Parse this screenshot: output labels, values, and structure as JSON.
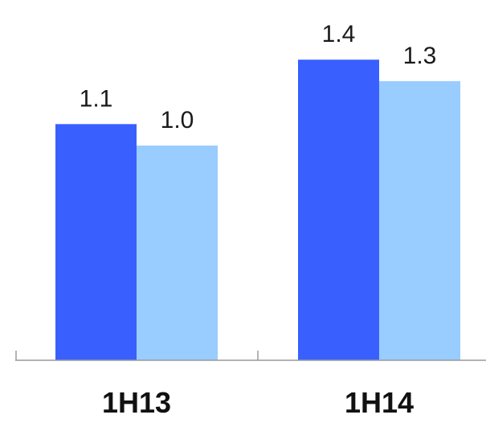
{
  "chart_data": {
    "type": "bar",
    "categories": [
      "1H13",
      "1H14"
    ],
    "series": [
      {
        "values": [
          1.1,
          1.4
        ],
        "color": "#3960FF"
      },
      {
        "values": [
          1.0,
          1.3
        ],
        "color": "#99CCFF"
      }
    ],
    "data_labels": [
      [
        "1.1",
        "1.4"
      ],
      [
        "1.0",
        "1.3"
      ]
    ],
    "title": "",
    "xlabel": "",
    "ylabel": "",
    "ylim": [
      0,
      1.5
    ],
    "grid": false,
    "legend": "none",
    "axis_color": "#9a9a9a"
  }
}
